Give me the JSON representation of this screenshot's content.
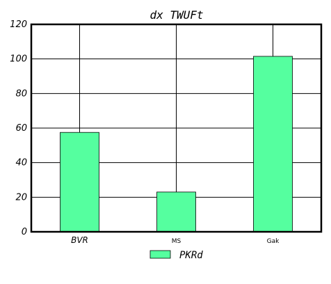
{
  "chart_data": {
    "type": "bar",
    "title": "dx  TWUFt",
    "categories": [
      "BVR",
      "MS",
      "Gak"
    ],
    "series": [
      {
        "name": "PKRd",
        "values": [
          57.5,
          23,
          101.5
        ],
        "color": "#55ff9f"
      }
    ],
    "ylim": [
      0,
      120
    ],
    "yticks": [
      0,
      20,
      40,
      60,
      80,
      100,
      120
    ],
    "grid": true,
    "legend": "bottom-center"
  }
}
